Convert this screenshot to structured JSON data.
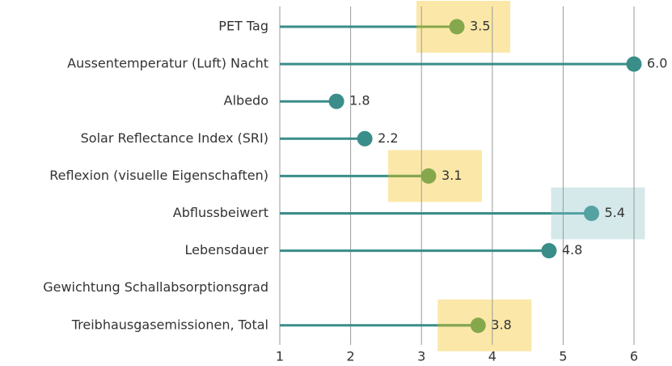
{
  "chart_data": {
    "type": "lollipop",
    "categories": [
      "PET Tag",
      "Aussentemperatur (Luft) Nacht",
      "Albedo",
      "Solar Reflectance Index (SRI)",
      "Reflexion (visuelle Eigenschaften)",
      "Abflussbeiwert",
      "Lebensdauer",
      "Gewichtung Schallabsorptionsgrad",
      "Treibhausgasemissionen, Total"
    ],
    "values": [
      3.5,
      6,
      1.8,
      2.2,
      3.1,
      5.4,
      4.8,
      null,
      3.8
    ],
    "value_labels": [
      "3.5",
      "6.0",
      "1.8",
      "2.2",
      "3.1",
      "5.4",
      "4.8",
      null,
      "3.8"
    ],
    "color": "#3a8d88",
    "missing_label_color": "#9a9a9a",
    "highlights": [
      {
        "fill": "#fbe8a8",
        "color": "#86a84d"
      },
      null,
      null,
      null,
      {
        "fill": "#fbe8a8",
        "color": "#86a84d"
      },
      {
        "fill": "#d5e8ea",
        "color": "#55a2a3"
      },
      null,
      null,
      {
        "fill": "#fbe8a8",
        "color": "#86a84d"
      }
    ],
    "xlim": [
      1,
      6.5
    ],
    "xticks": [
      1,
      2,
      3,
      4,
      5,
      6
    ],
    "grid": true
  }
}
